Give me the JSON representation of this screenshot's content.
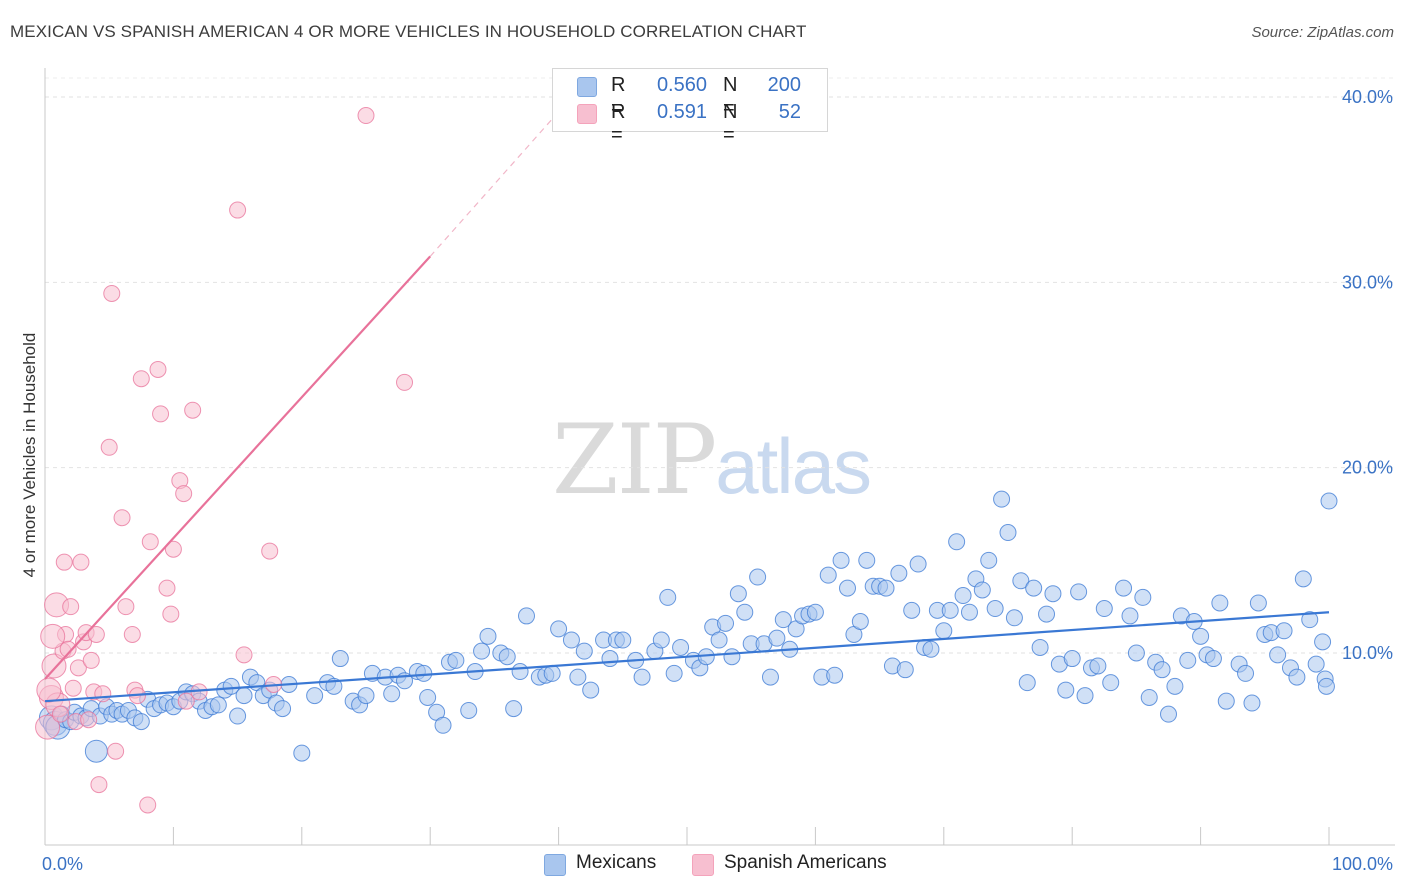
{
  "title": "MEXICAN VS SPANISH AMERICAN 4 OR MORE VEHICLES IN HOUSEHOLD CORRELATION CHART",
  "source": "Source: ZipAtlas.com",
  "watermark": {
    "zip": "ZIP",
    "atlas": "atlas"
  },
  "legend_top": {
    "rows": [
      {
        "r_label": "R =",
        "r_value": "0.560",
        "n_label": "N =",
        "n_value": "200",
        "color": "#7fa8e0"
      },
      {
        "r_label": "R =",
        "r_value": "0.591",
        "n_label": "N =",
        "n_value": "52",
        "color": "#f4a3bb"
      }
    ]
  },
  "legend_bottom": [
    {
      "label": "Mexicans",
      "color": "#7fa8e0"
    },
    {
      "label": "Spanish Americans",
      "color": "#f4a3bb"
    }
  ],
  "chart_data": {
    "type": "scatter",
    "title": "MEXICAN VS SPANISH AMERICAN 4 OR MORE VEHICLES IN HOUSEHOLD CORRELATION CHART",
    "xlabel": "",
    "ylabel": "4 or more Vehicles in Household",
    "xlim": [
      0,
      100
    ],
    "ylim": [
      0,
      40
    ],
    "x_tick_labels": [
      "0.0%",
      "100.0%"
    ],
    "y_tick_labels": [
      "10.0%",
      "20.0%",
      "30.0%",
      "40.0%"
    ],
    "y_ticks": [
      10,
      20,
      30,
      40
    ],
    "grid": true,
    "series": [
      {
        "name": "Mexicans",
        "color": "#3a78d4",
        "fill": "#a9c6ee",
        "trend": {
          "x": [
            0,
            100
          ],
          "y": [
            7.4,
            12.2
          ]
        },
        "points": [
          [
            0.5,
            6.5
          ],
          [
            0.8,
            6.2
          ],
          [
            1.0,
            6.0
          ],
          [
            1.3,
            6.7
          ],
          [
            1.6,
            6.4
          ],
          [
            2.0,
            6.3
          ],
          [
            2.3,
            6.8
          ],
          [
            2.8,
            6.6
          ],
          [
            3.2,
            6.5
          ],
          [
            3.6,
            7.0
          ],
          [
            4.0,
            4.7
          ],
          [
            4.3,
            6.6
          ],
          [
            4.8,
            7.1
          ],
          [
            5.2,
            6.7
          ],
          [
            5.6,
            6.9
          ],
          [
            6.0,
            6.7
          ],
          [
            6.5,
            6.9
          ],
          [
            7.0,
            6.5
          ],
          [
            7.5,
            6.3
          ],
          [
            8.0,
            7.5
          ],
          [
            8.5,
            7.0
          ],
          [
            9.0,
            7.2
          ],
          [
            9.5,
            7.3
          ],
          [
            10.0,
            7.1
          ],
          [
            10.5,
            7.4
          ],
          [
            11.0,
            7.9
          ],
          [
            11.5,
            7.8
          ],
          [
            12.0,
            7.4
          ],
          [
            12.5,
            6.9
          ],
          [
            13.0,
            7.1
          ],
          [
            13.5,
            7.2
          ],
          [
            14.0,
            8.0
          ],
          [
            14.5,
            8.2
          ],
          [
            15.0,
            6.6
          ],
          [
            15.5,
            7.7
          ],
          [
            16.0,
            8.7
          ],
          [
            16.5,
            8.4
          ],
          [
            17.0,
            7.7
          ],
          [
            17.5,
            8.0
          ],
          [
            18.0,
            7.3
          ],
          [
            18.5,
            7.0
          ],
          [
            19.0,
            8.3
          ],
          [
            20.0,
            4.6
          ],
          [
            21.0,
            7.7
          ],
          [
            22.0,
            8.4
          ],
          [
            22.5,
            8.2
          ],
          [
            23.0,
            9.7
          ],
          [
            24.0,
            7.4
          ],
          [
            24.5,
            7.2
          ],
          [
            25.0,
            7.7
          ],
          [
            25.5,
            8.9
          ],
          [
            26.5,
            8.7
          ],
          [
            27.0,
            7.8
          ],
          [
            27.5,
            8.8
          ],
          [
            28.0,
            8.5
          ],
          [
            29.0,
            9.0
          ],
          [
            29.5,
            8.9
          ],
          [
            29.8,
            7.6
          ],
          [
            30.5,
            6.8
          ],
          [
            31.0,
            6.1
          ],
          [
            31.5,
            9.5
          ],
          [
            32.0,
            9.6
          ],
          [
            33.0,
            6.9
          ],
          [
            33.5,
            9.0
          ],
          [
            34.0,
            10.1
          ],
          [
            34.5,
            10.9
          ],
          [
            35.5,
            10.0
          ],
          [
            36.0,
            9.8
          ],
          [
            36.5,
            7.0
          ],
          [
            37.0,
            9.0
          ],
          [
            37.5,
            12.0
          ],
          [
            38.5,
            8.7
          ],
          [
            39.0,
            8.8
          ],
          [
            39.5,
            8.9
          ],
          [
            40.0,
            11.3
          ],
          [
            41.0,
            10.7
          ],
          [
            41.5,
            8.7
          ],
          [
            42.0,
            10.1
          ],
          [
            42.5,
            8.0
          ],
          [
            43.5,
            10.7
          ],
          [
            44.0,
            9.7
          ],
          [
            44.5,
            10.7
          ],
          [
            45.0,
            10.7
          ],
          [
            46.0,
            9.6
          ],
          [
            46.5,
            8.7
          ],
          [
            47.5,
            10.1
          ],
          [
            48.0,
            10.7
          ],
          [
            48.5,
            13.0
          ],
          [
            49.0,
            8.9
          ],
          [
            49.5,
            10.3
          ],
          [
            50.5,
            9.6
          ],
          [
            51.0,
            9.2
          ],
          [
            51.5,
            9.8
          ],
          [
            52.0,
            11.4
          ],
          [
            52.5,
            10.7
          ],
          [
            53.0,
            11.6
          ],
          [
            53.5,
            9.8
          ],
          [
            54.0,
            13.2
          ],
          [
            54.5,
            12.2
          ],
          [
            55.0,
            10.5
          ],
          [
            55.5,
            14.1
          ],
          [
            56.0,
            10.5
          ],
          [
            56.5,
            8.7
          ],
          [
            57.0,
            10.8
          ],
          [
            57.5,
            11.8
          ],
          [
            58.0,
            10.2
          ],
          [
            58.5,
            11.3
          ],
          [
            59.0,
            12.0
          ],
          [
            59.5,
            12.1
          ],
          [
            60.0,
            12.2
          ],
          [
            60.5,
            8.7
          ],
          [
            61.0,
            14.2
          ],
          [
            61.5,
            8.8
          ],
          [
            62.0,
            15.0
          ],
          [
            62.5,
            13.5
          ],
          [
            63.0,
            11.0
          ],
          [
            63.5,
            11.7
          ],
          [
            64.0,
            15.0
          ],
          [
            64.5,
            13.6
          ],
          [
            65.0,
            13.6
          ],
          [
            65.5,
            13.5
          ],
          [
            66.0,
            9.3
          ],
          [
            66.5,
            14.3
          ],
          [
            67.0,
            9.1
          ],
          [
            67.5,
            12.3
          ],
          [
            68.0,
            14.8
          ],
          [
            68.5,
            10.3
          ],
          [
            69.0,
            10.2
          ],
          [
            69.5,
            12.3
          ],
          [
            70.0,
            11.2
          ],
          [
            70.5,
            12.3
          ],
          [
            71.0,
            16.0
          ],
          [
            71.5,
            13.1
          ],
          [
            72.0,
            12.2
          ],
          [
            72.5,
            14.0
          ],
          [
            73.0,
            13.4
          ],
          [
            73.5,
            15.0
          ],
          [
            74.0,
            12.4
          ],
          [
            74.5,
            18.3
          ],
          [
            75.0,
            16.5
          ],
          [
            75.5,
            11.9
          ],
          [
            76.0,
            13.9
          ],
          [
            76.5,
            8.4
          ],
          [
            77.0,
            13.5
          ],
          [
            77.5,
            10.3
          ],
          [
            78.0,
            12.1
          ],
          [
            78.5,
            13.2
          ],
          [
            79.0,
            9.4
          ],
          [
            79.5,
            8.0
          ],
          [
            80.0,
            9.7
          ],
          [
            80.5,
            13.3
          ],
          [
            81.0,
            7.7
          ],
          [
            81.5,
            9.2
          ],
          [
            82.0,
            9.3
          ],
          [
            82.5,
            12.4
          ],
          [
            83.0,
            8.4
          ],
          [
            84.0,
            13.5
          ],
          [
            84.5,
            12.0
          ],
          [
            85.0,
            10.0
          ],
          [
            85.5,
            13.0
          ],
          [
            86.0,
            7.6
          ],
          [
            86.5,
            9.5
          ],
          [
            87.0,
            9.1
          ],
          [
            87.5,
            6.7
          ],
          [
            88.0,
            8.2
          ],
          [
            88.5,
            12.0
          ],
          [
            89.0,
            9.6
          ],
          [
            89.5,
            11.7
          ],
          [
            90.0,
            10.9
          ],
          [
            90.5,
            9.9
          ],
          [
            91.0,
            9.7
          ],
          [
            91.5,
            12.7
          ],
          [
            92.0,
            7.4
          ],
          [
            93.0,
            9.4
          ],
          [
            93.5,
            8.9
          ],
          [
            94.0,
            7.3
          ],
          [
            94.5,
            12.7
          ],
          [
            95.0,
            11.0
          ],
          [
            95.5,
            11.1
          ],
          [
            96.0,
            9.9
          ],
          [
            96.5,
            11.2
          ],
          [
            97.0,
            9.2
          ],
          [
            97.5,
            8.7
          ],
          [
            98.0,
            14.0
          ],
          [
            98.5,
            11.8
          ],
          [
            99.0,
            9.4
          ],
          [
            99.5,
            10.6
          ],
          [
            99.7,
            8.6
          ],
          [
            99.8,
            8.2
          ],
          [
            100.0,
            18.2
          ]
        ]
      },
      {
        "name": "Spanish Americans",
        "color": "#e8729a",
        "fill": "#f7bfd0",
        "trend": {
          "x": [
            0,
            30
          ],
          "y": [
            8.6,
            31.4
          ]
        },
        "trend_extension": {
          "x": [
            30,
            40
          ],
          "y": [
            31.4,
            39.2
          ]
        },
        "points": [
          [
            0.2,
            6.0
          ],
          [
            0.5,
            7.6
          ],
          [
            0.7,
            9.3
          ],
          [
            0.9,
            12.6
          ],
          [
            1.0,
            7.2
          ],
          [
            1.2,
            6.7
          ],
          [
            1.4,
            10.1
          ],
          [
            1.6,
            11.0
          ],
          [
            1.8,
            10.2
          ],
          [
            2.0,
            12.5
          ],
          [
            2.2,
            8.1
          ],
          [
            2.4,
            6.3
          ],
          [
            2.6,
            9.2
          ],
          [
            2.8,
            14.9
          ],
          [
            3.0,
            10.6
          ],
          [
            3.2,
            11.1
          ],
          [
            3.4,
            6.4
          ],
          [
            3.6,
            9.6
          ],
          [
            3.8,
            7.9
          ],
          [
            4.0,
            11.0
          ],
          [
            4.2,
            2.9
          ],
          [
            4.5,
            7.8
          ],
          [
            5.0,
            21.1
          ],
          [
            5.2,
            29.4
          ],
          [
            5.5,
            4.7
          ],
          [
            6.0,
            17.3
          ],
          [
            6.3,
            12.5
          ],
          [
            6.8,
            11.0
          ],
          [
            7.0,
            8.0
          ],
          [
            7.2,
            7.7
          ],
          [
            7.5,
            24.8
          ],
          [
            8.0,
            1.8
          ],
          [
            8.2,
            16.0
          ],
          [
            8.8,
            25.3
          ],
          [
            9.0,
            22.9
          ],
          [
            9.5,
            13.5
          ],
          [
            9.8,
            12.1
          ],
          [
            10.0,
            15.6
          ],
          [
            10.5,
            19.3
          ],
          [
            10.8,
            18.6
          ],
          [
            11.0,
            7.4
          ],
          [
            11.5,
            23.1
          ],
          [
            12.0,
            7.9
          ],
          [
            15.0,
            33.9
          ],
          [
            15.5,
            9.9
          ],
          [
            17.5,
            15.5
          ],
          [
            17.8,
            8.3
          ],
          [
            25.0,
            39.0
          ],
          [
            28.0,
            24.6
          ],
          [
            0.3,
            8.0
          ],
          [
            0.6,
            10.9
          ],
          [
            1.5,
            14.9
          ]
        ]
      }
    ]
  }
}
